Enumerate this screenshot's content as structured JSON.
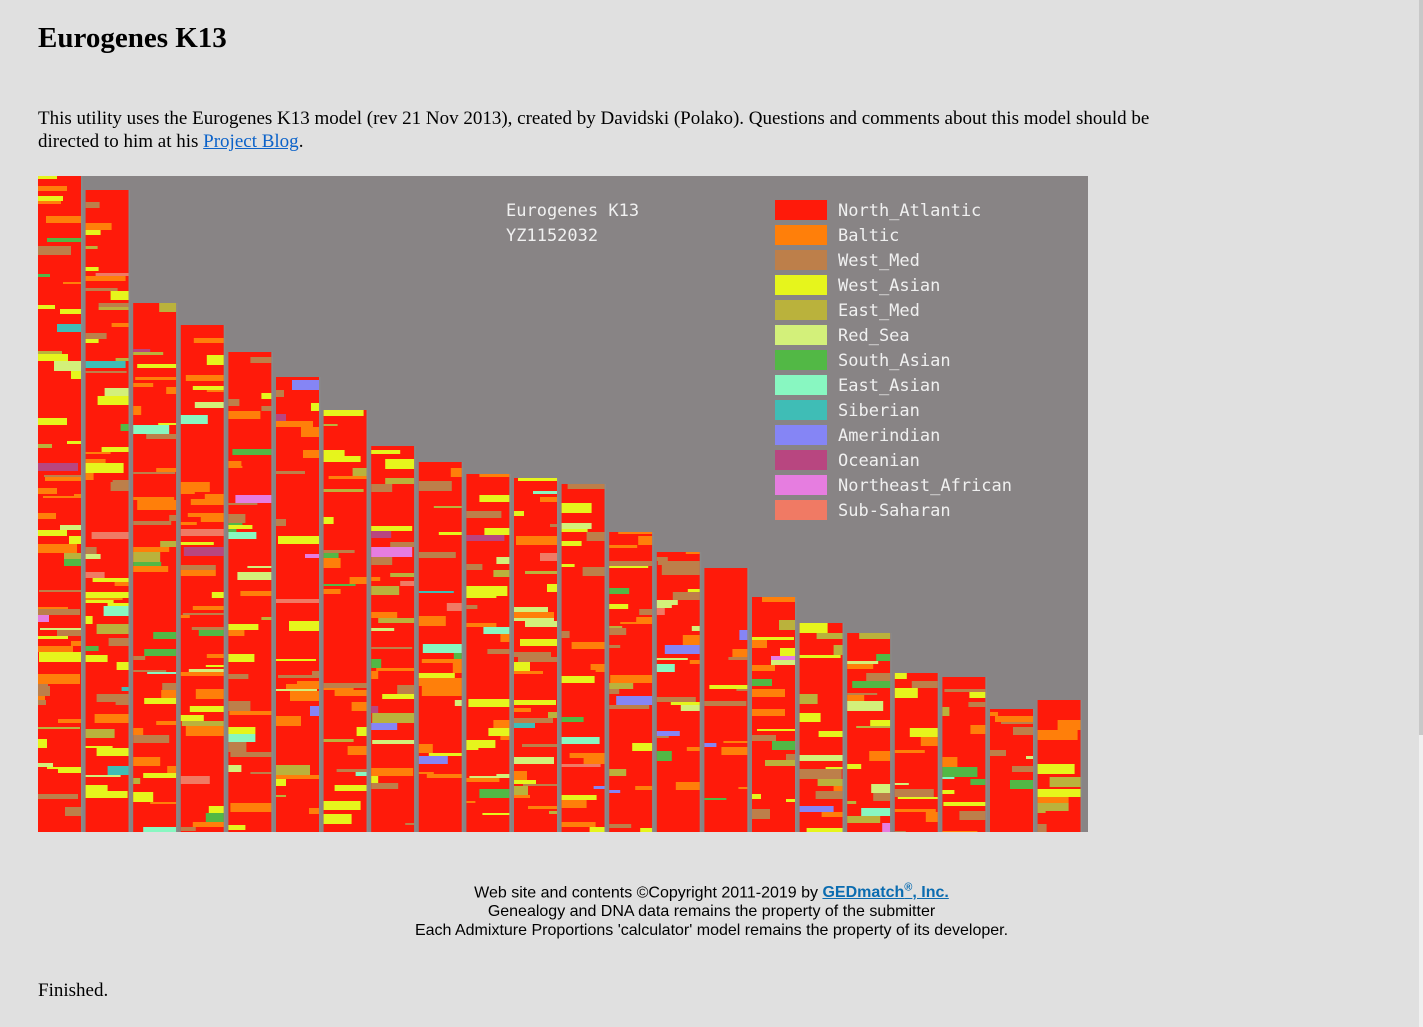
{
  "page": {
    "title": "Eurogenes K13",
    "intro_before_link": "This utility uses the Eurogenes K13 model (rev 21 Nov 2013), created by Davidski (Polako). Questions and comments about this model should be directed to him at his ",
    "link_label": "Project Blog",
    "intro_after_link": ".",
    "finished": "Finished."
  },
  "footer": {
    "line1_prefix": "Web site and contents ©Copyright 2011-2019 by ",
    "company_name": "GEDmatch",
    "registered_mark": "®",
    "company_suffix": ", Inc.",
    "line2": "Genealogy and DNA data remains the property of the submitter",
    "line3": "Each Admixture Proportions 'calculator' model remains the property of its developer."
  },
  "chart_data": {
    "type": "chromosome-painting",
    "title": "Eurogenes K13",
    "kit_id": "YZ1152032",
    "background": "#888485",
    "legend": [
      {
        "name": "North_Atlantic",
        "color": "#ff1a0a"
      },
      {
        "name": "Baltic",
        "color": "#ff7f0a"
      },
      {
        "name": "West_Med",
        "color": "#bd7f4a"
      },
      {
        "name": "West_Asian",
        "color": "#e6f51c"
      },
      {
        "name": "East_Med",
        "color": "#bab23c"
      },
      {
        "name": "Red_Sea",
        "color": "#d3f07a"
      },
      {
        "name": "South_Asian",
        "color": "#52b845"
      },
      {
        "name": "East_Asian",
        "color": "#88f7c1"
      },
      {
        "name": "Siberian",
        "color": "#3fbdb6"
      },
      {
        "name": "Amerindian",
        "color": "#8585f5"
      },
      {
        "name": "Oceanian",
        "color": "#b84680"
      },
      {
        "name": "Northeast_African",
        "color": "#e67de0"
      },
      {
        "name": "Sub-Saharan",
        "color": "#f07a64"
      }
    ],
    "chromosome_count": 22,
    "chromosome_relative_lengths": [
      1.0,
      0.978,
      0.806,
      0.773,
      0.732,
      0.693,
      0.643,
      0.589,
      0.564,
      0.545,
      0.54,
      0.53,
      0.458,
      0.427,
      0.402,
      0.358,
      0.319,
      0.304,
      0.243,
      0.236,
      0.188,
      0.201
    ]
  }
}
